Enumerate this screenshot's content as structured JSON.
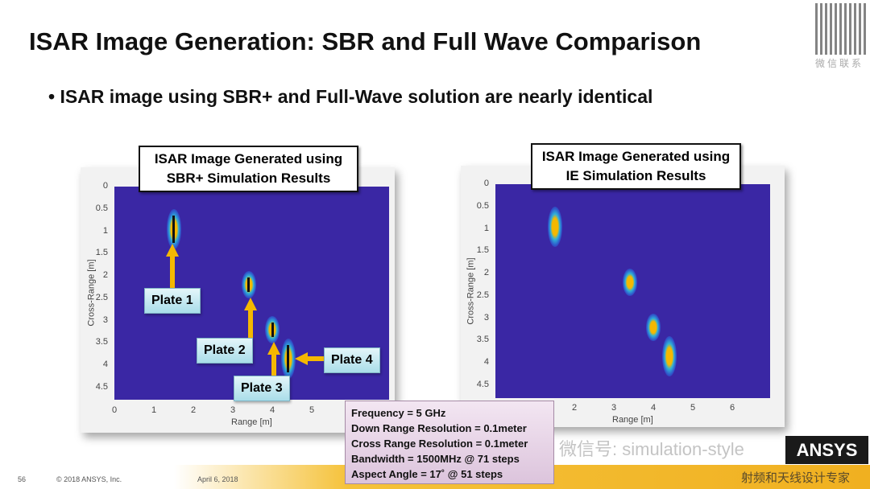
{
  "slide": {
    "title": "ISAR Image Generation: SBR and Full Wave Comparison",
    "bullet": "ISAR image using SBR+ and Full-Wave solution are nearly identical"
  },
  "left": {
    "caption1": "ISAR Image Generated using",
    "caption2": "SBR+ Simulation Results",
    "xlabel": "Range [m]",
    "ylabel": "Cross-Range [m]",
    "xticks": [
      "0",
      "1",
      "2",
      "3",
      "4",
      "5"
    ],
    "yticks": [
      "0",
      "0.5",
      "1",
      "1.5",
      "2",
      "2.5",
      "3",
      "3.5",
      "4",
      "4.5"
    ],
    "plates": [
      "Plate 1",
      "Plate 2",
      "Plate 3",
      "Plate 4"
    ]
  },
  "right": {
    "caption1": "ISAR Image Generated using",
    "caption2": "IE Simulation Results",
    "xlabel": "Range [m]",
    "ylabel": "Cross-Range [m]",
    "xticks": [
      "2",
      "3",
      "4",
      "5",
      "6"
    ],
    "yticks": [
      "0",
      "0.5",
      "1",
      "1.5",
      "2",
      "2.5",
      "3",
      "3.5",
      "4",
      "4.5"
    ]
  },
  "chart_data": [
    {
      "type": "heatmap",
      "title": "ISAR Image Generated using SBR+ Simulation Results",
      "xlabel": "Range [m]",
      "ylabel": "Cross-Range [m]",
      "xlim": [
        0,
        7
      ],
      "ylim": [
        0,
        4.8
      ],
      "scatterers": [
        {
          "name": "Plate 1",
          "x": 1.5,
          "y": 0.95
        },
        {
          "name": "Plate 2",
          "x": 3.4,
          "y": 2.2
        },
        {
          "name": "Plate 3",
          "x": 4.0,
          "y": 3.2
        },
        {
          "name": "Plate 4",
          "x": 4.4,
          "y": 3.85
        }
      ]
    },
    {
      "type": "heatmap",
      "title": "ISAR Image Generated using IE Simulation Results",
      "xlabel": "Range [m]",
      "ylabel": "Cross-Range [m]",
      "xlim": [
        0,
        7
      ],
      "ylim": [
        0,
        4.8
      ],
      "scatterers": [
        {
          "x": 1.5,
          "y": 0.95
        },
        {
          "x": 3.4,
          "y": 2.2
        },
        {
          "x": 4.0,
          "y": 3.2
        },
        {
          "x": 4.4,
          "y": 3.85
        }
      ]
    }
  ],
  "info": [
    "Frequency = 5 GHz",
    "Down Range Resolution = 0.1meter",
    "Cross Range Resolution = 0.1meter",
    "Bandwidth = 1500MHz @ 71 steps",
    "Aspect Angle = 17˚ @ 51 steps"
  ],
  "footer": {
    "page": "56",
    "copyright": "© 2018 ANSYS, Inc.",
    "date": "April 6, 2018",
    "logo": "ANSYS"
  },
  "watermark": {
    "text": "微信号: simulation-style",
    "cn": "射频和天线设计专家",
    "qr": "微信联系"
  },
  "colors": {
    "background": "#3a27a4",
    "arrow": "#f5b800"
  }
}
